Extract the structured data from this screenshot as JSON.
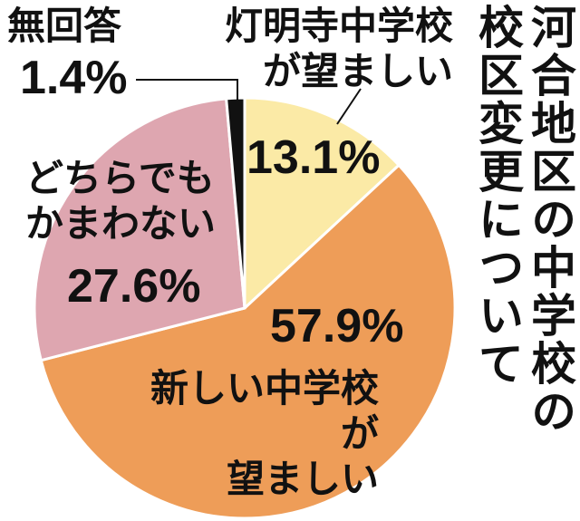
{
  "chart_data": {
    "type": "pie",
    "title": "河合地区の中学校の校区変更について",
    "categories": [
      "灯明寺中学校\nが望ましい",
      "新しい中学校が\n望ましい",
      "どちらでも\nかまわない",
      "無回答"
    ],
    "values": [
      13.1,
      57.9,
      27.6,
      1.4
    ],
    "value_labels": [
      "13.1%",
      "57.9%",
      "27.6%",
      "1.4%"
    ],
    "colors": [
      "#fbeaa6",
      "#ee9d58",
      "#dea6b0",
      "#111111"
    ]
  }
}
